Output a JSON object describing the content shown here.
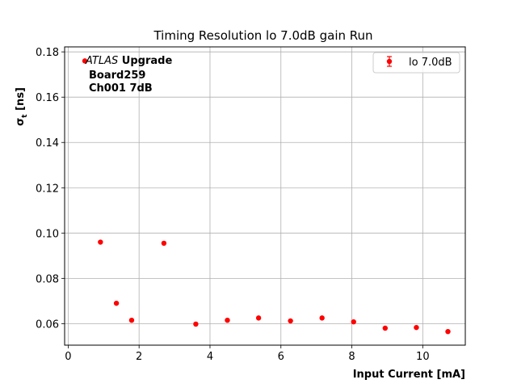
{
  "chart_data": {
    "type": "scatter",
    "title": "Timing Resolution lo 7.0dB gain Run",
    "xlabel": "Input Current [mA]",
    "ylabel_main": "σ",
    "ylabel_sub": "t",
    "ylabel_unit": " [ns]",
    "xlim": [
      -0.1,
      11.2
    ],
    "ylim": [
      0.0505,
      0.1822
    ],
    "xticks": [
      0,
      2,
      4,
      6,
      8,
      10
    ],
    "xtick_labels": [
      "0",
      "2",
      "4",
      "6",
      "8",
      "10"
    ],
    "yticks": [
      0.06,
      0.08,
      0.1,
      0.12,
      0.14,
      0.16,
      0.18
    ],
    "ytick_labels": [
      "0.06",
      "0.08",
      "0.10",
      "0.12",
      "0.14",
      "0.16",
      "0.18"
    ],
    "grid": true,
    "legend_position": "top-right",
    "annotation": {
      "atlas": "ATLAS",
      "upgrade": " Upgrade",
      "line2": "Board259",
      "line3": "Ch001 7dB"
    },
    "series": [
      {
        "name": "lo 7.0dB",
        "color": "#ff0000",
        "marker": "circle",
        "x": [
          0.47,
          0.91,
          1.36,
          1.79,
          2.7,
          3.6,
          4.49,
          5.37,
          6.27,
          7.16,
          8.05,
          8.94,
          9.82,
          10.71
        ],
        "y": [
          0.176,
          0.096,
          0.069,
          0.0615,
          0.0955,
          0.0598,
          0.0615,
          0.0625,
          0.0612,
          0.0625,
          0.0608,
          0.058,
          0.0583,
          0.0565
        ]
      }
    ]
  }
}
